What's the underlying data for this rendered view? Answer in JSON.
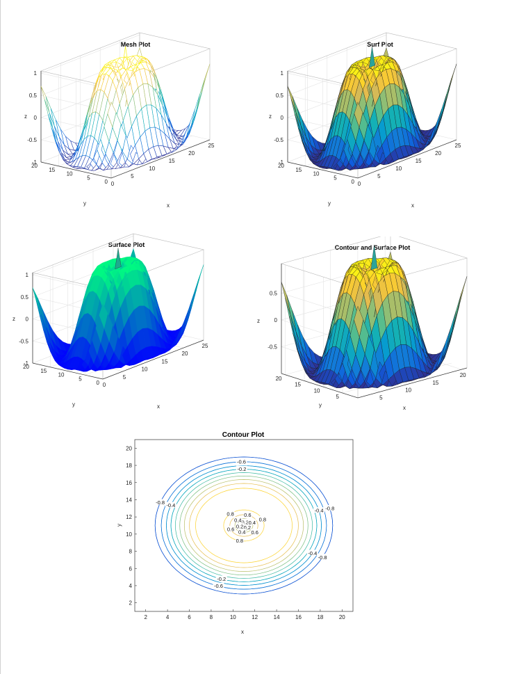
{
  "chart_data": [
    {
      "type": "surface",
      "style": "mesh",
      "title": "Mesh Plot",
      "xlabel": "x",
      "ylabel": "y",
      "zlabel": "z",
      "xticks": [
        "0",
        "5",
        "10",
        "15",
        "20",
        "25"
      ],
      "yticks": [
        "0",
        "5",
        "10",
        "15",
        "20"
      ],
      "zticks": [
        "-1",
        "-0.5",
        "0",
        "0.5",
        "1"
      ],
      "xlim": [
        0,
        25
      ],
      "ylim": [
        0,
        20
      ],
      "zlim": [
        -1,
        1
      ],
      "grid": [
        21,
        21
      ],
      "function": "z = sin(r/2), r = distance from grid centre (11,11)",
      "grid_lines": true,
      "colormap": "parula"
    },
    {
      "type": "surface",
      "style": "surf",
      "title": "Surf Plot",
      "xlabel": "x",
      "ylabel": "y",
      "zlabel": "z",
      "xticks": [
        "0",
        "5",
        "10",
        "15",
        "20",
        "25"
      ],
      "yticks": [
        "0",
        "5",
        "10",
        "15",
        "20"
      ],
      "zticks": [
        "-1",
        "-0.5",
        "0",
        "0.5",
        "1"
      ],
      "xlim": [
        0,
        25
      ],
      "ylim": [
        0,
        20
      ],
      "zlim": [
        -1,
        1
      ],
      "grid": [
        21,
        21
      ],
      "colormap": "parula"
    },
    {
      "type": "surface",
      "style": "surface-smooth",
      "title": "Surface Plot",
      "xlabel": "x",
      "ylabel": "y",
      "zlabel": "z",
      "xticks": [
        "0",
        "5",
        "10",
        "15",
        "20",
        "25"
      ],
      "yticks": [
        "0",
        "5",
        "10",
        "15",
        "20"
      ],
      "zticks": [
        "-1",
        "-0.5",
        "0",
        "0.5",
        "1"
      ],
      "xlim": [
        0,
        25
      ],
      "ylim": [
        0,
        20
      ],
      "zlim": [
        -1,
        1
      ],
      "colormap": "winter"
    },
    {
      "type": "surface",
      "style": "surfc",
      "title": "Contour and Surface Plot",
      "xlabel": "x",
      "ylabel": "y",
      "zlabel": "z",
      "xticks": [
        "5",
        "10",
        "15",
        "20"
      ],
      "yticks": [
        "5",
        "10",
        "15",
        "20"
      ],
      "zticks": [
        "-0.5",
        "0",
        "0.5"
      ],
      "xlim": [
        1,
        21
      ],
      "ylim": [
        1,
        21
      ],
      "zlim": [
        -1,
        1
      ],
      "colormap": "parula"
    },
    {
      "type": "contour",
      "title": "Contour Plot",
      "xlabel": "x",
      "ylabel": "y",
      "xticks": [
        "2",
        "4",
        "6",
        "8",
        "10",
        "12",
        "14",
        "16",
        "18",
        "20"
      ],
      "yticks": [
        "2",
        "4",
        "6",
        "8",
        "10",
        "12",
        "14",
        "16",
        "18",
        "20"
      ],
      "xlim": [
        1,
        21
      ],
      "ylim": [
        1,
        21
      ],
      "levels": [
        -0.8,
        -0.6,
        -0.4,
        -0.2,
        0,
        0.2,
        0.4,
        0.6,
        0.8
      ],
      "level_labels": [
        "-0.8",
        "-0.6",
        "-0.4",
        "-0.2",
        "0",
        "0.2",
        "0.4",
        "0.6",
        "0.8"
      ],
      "center": [
        11,
        11
      ],
      "colormap": "parula"
    }
  ]
}
